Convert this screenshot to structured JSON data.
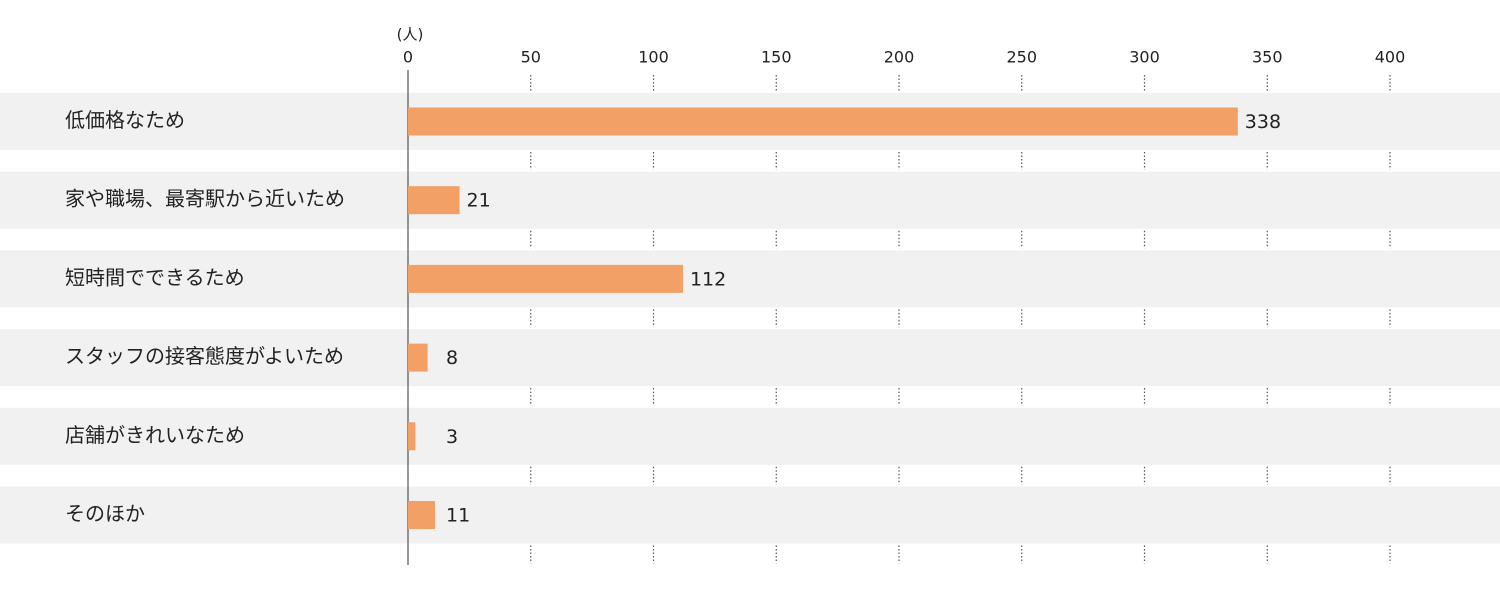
{
  "chart_data": {
    "type": "hbar",
    "unit_label": "(人)",
    "categories": [
      "低価格なため",
      "家や職場、最寄駅から近いため",
      "短時間でできるため",
      "スタッフの接客態度がよいため",
      "店舗がきれいなため",
      "そのほか"
    ],
    "values": [
      338,
      21,
      112,
      8,
      3,
      11
    ],
    "color": "#f2a066",
    "xlim": [
      0,
      400
    ],
    "xticks": [
      0,
      50,
      100,
      150,
      200,
      250,
      300,
      350,
      400
    ],
    "grid": true
  }
}
